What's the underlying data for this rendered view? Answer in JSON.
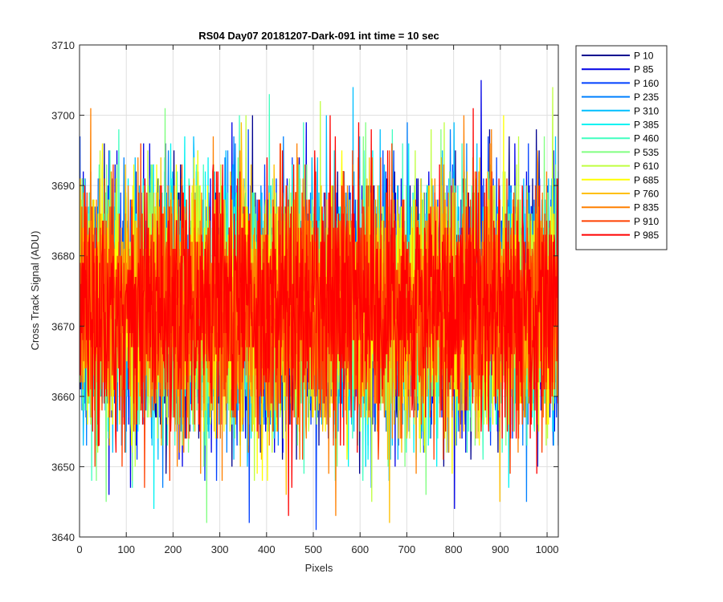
{
  "chart_data": {
    "type": "line",
    "title": "RS04 Day07 20181207-Dark-091 int time = 10 sec",
    "xlabel": "Pixels",
    "ylabel": "Cross Track Signal (ADU)",
    "xlim": [
      0,
      1024
    ],
    "ylim": [
      3640,
      3710
    ],
    "xticks": [
      0,
      100,
      200,
      300,
      400,
      500,
      600,
      700,
      800,
      900,
      1000
    ],
    "yticks": [
      3640,
      3650,
      3660,
      3670,
      3680,
      3690,
      3700,
      3710
    ],
    "grid": true,
    "legend_position": "outside-right",
    "x_range_per_series": [
      1,
      1024
    ],
    "noise_mean": 3673,
    "noise_std": 8.5,
    "series": [
      {
        "name": "P 10",
        "color": "#00008f"
      },
      {
        "name": "P 85",
        "color": "#0000e6"
      },
      {
        "name": "P 160",
        "color": "#0040ff"
      },
      {
        "name": "P 235",
        "color": "#0080ff"
      },
      {
        "name": "P 310",
        "color": "#00bfff"
      },
      {
        "name": "P 385",
        "color": "#00f2f2"
      },
      {
        "name": "P 460",
        "color": "#40ffbf"
      },
      {
        "name": "P 535",
        "color": "#80ff80"
      },
      {
        "name": "P 610",
        "color": "#bfff40"
      },
      {
        "name": "P 685",
        "color": "#ffff00"
      },
      {
        "name": "P 760",
        "color": "#ffbf00"
      },
      {
        "name": "P 835",
        "color": "#ff8000"
      },
      {
        "name": "P 910",
        "color": "#ff4000"
      },
      {
        "name": "P 985",
        "color": "#ff0000"
      }
    ]
  }
}
